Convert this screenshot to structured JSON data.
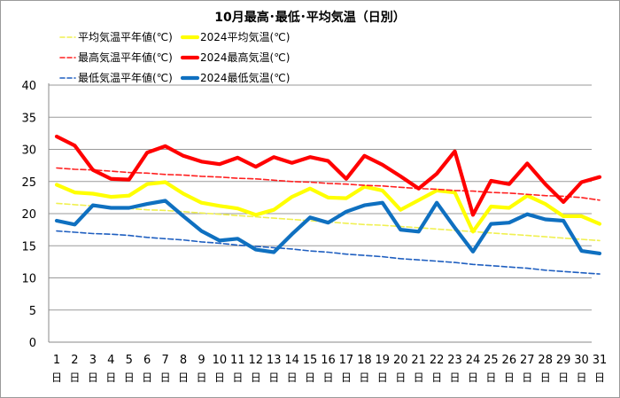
{
  "chart_data": {
    "type": "line",
    "title": "10月最高･最低･平均気温（日別）",
    "xlabel": "",
    "ylabel": "",
    "ylim": [
      0,
      40
    ],
    "yticks": [
      "0",
      "5",
      "10",
      "15",
      "20",
      "25",
      "30",
      "35",
      "40"
    ],
    "x": [
      1,
      2,
      3,
      4,
      5,
      6,
      7,
      8,
      9,
      10,
      11,
      12,
      13,
      14,
      15,
      16,
      17,
      18,
      19,
      20,
      21,
      22,
      23,
      24,
      25,
      26,
      27,
      28,
      29,
      30,
      31
    ],
    "x_tick_labels": [
      "1",
      "2",
      "3",
      "4",
      "5",
      "6",
      "7",
      "8",
      "9",
      "10",
      "11",
      "12",
      "13",
      "14",
      "15",
      "16",
      "17",
      "18",
      "19",
      "20",
      "21",
      "22",
      "23",
      "24",
      "25",
      "26",
      "27",
      "28",
      "29",
      "30",
      "31"
    ],
    "x_unit_label": "日",
    "grid": "horizontal",
    "legend_position": "top-left",
    "series": [
      {
        "name": "平均気温平年値(℃)",
        "color": "#f0f050",
        "style": "dashed",
        "values": [
          21.6,
          21.4,
          21.2,
          21.0,
          20.8,
          20.6,
          20.5,
          20.3,
          20.1,
          19.9,
          19.7,
          19.5,
          19.3,
          19.1,
          18.9,
          18.7,
          18.5,
          18.3,
          18.2,
          18.0,
          17.8,
          17.6,
          17.4,
          17.2,
          17.0,
          16.8,
          16.6,
          16.4,
          16.2,
          16.0,
          15.8
        ]
      },
      {
        "name": "2024平均気温(℃)",
        "color": "#ffff00",
        "style": "solid",
        "values": [
          24.5,
          23.3,
          23.1,
          22.6,
          22.8,
          24.6,
          24.9,
          23.1,
          21.7,
          21.2,
          20.8,
          19.8,
          20.6,
          22.6,
          23.9,
          22.5,
          22.4,
          24.2,
          23.6,
          20.6,
          22.1,
          23.6,
          23.3,
          17.2,
          21.1,
          20.9,
          22.8,
          21.5,
          19.6,
          19.6,
          18.4
        ]
      },
      {
        "name": "最高気温平年値(℃)",
        "color": "#ff2020",
        "style": "dashed",
        "values": [
          27.1,
          26.9,
          26.8,
          26.6,
          26.4,
          26.3,
          26.1,
          26.0,
          25.8,
          25.7,
          25.5,
          25.4,
          25.2,
          25.0,
          24.9,
          24.7,
          24.6,
          24.4,
          24.3,
          24.1,
          23.9,
          23.8,
          23.6,
          23.5,
          23.3,
          23.2,
          23.0,
          22.8,
          22.7,
          22.5,
          22.1
        ]
      },
      {
        "name": "2024最高気温(℃)",
        "color": "#ff0000",
        "style": "solid",
        "values": [
          32.0,
          30.6,
          26.8,
          25.4,
          25.3,
          29.5,
          30.5,
          29.0,
          28.1,
          27.7,
          28.7,
          27.3,
          28.8,
          27.9,
          28.8,
          28.2,
          25.4,
          29.0,
          27.6,
          25.8,
          23.9,
          26.2,
          29.7,
          19.8,
          25.1,
          24.6,
          27.8,
          24.6,
          21.8,
          24.9,
          25.7
        ]
      },
      {
        "name": "最低気温平年値(℃)",
        "color": "#1f5fc0",
        "style": "dashed",
        "values": [
          17.3,
          17.1,
          16.9,
          16.8,
          16.6,
          16.3,
          16.1,
          15.9,
          15.6,
          15.4,
          15.1,
          14.9,
          14.7,
          14.5,
          14.2,
          14.0,
          13.7,
          13.5,
          13.3,
          13.0,
          12.8,
          12.6,
          12.4,
          12.1,
          11.9,
          11.7,
          11.5,
          11.2,
          11.0,
          10.8,
          10.6
        ]
      },
      {
        "name": "2024最低気温(℃)",
        "color": "#0f70c0",
        "style": "solid",
        "values": [
          18.9,
          18.3,
          21.3,
          20.9,
          20.9,
          21.5,
          22.0,
          19.6,
          17.3,
          15.8,
          16.1,
          14.4,
          14.0,
          16.8,
          19.4,
          18.6,
          20.3,
          21.3,
          21.7,
          17.5,
          17.2,
          21.7,
          17.8,
          14.1,
          18.4,
          18.6,
          19.9,
          19.1,
          18.9,
          14.2,
          13.8
        ]
      }
    ]
  }
}
